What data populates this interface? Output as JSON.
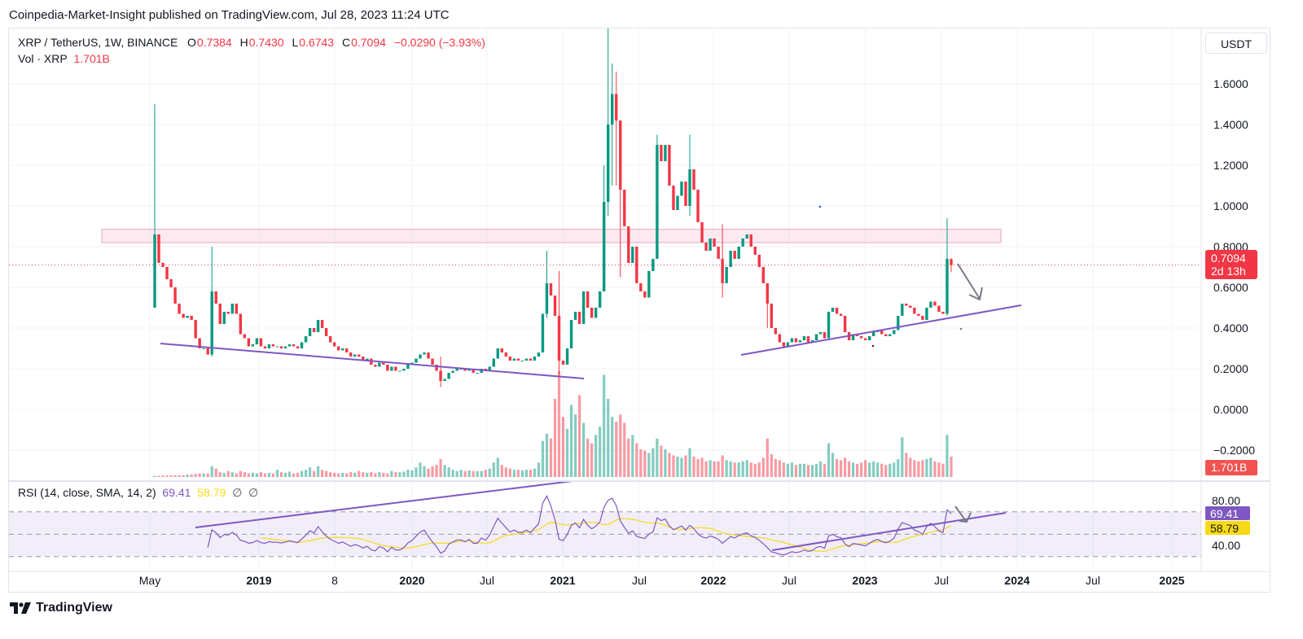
{
  "publisher_line": "Coinpedia-Market-Insight published on TradingView.com, Jul 28, 2023 11:24 UTC",
  "legend": {
    "symbol": "XRP / TetherUS, 1W, BINANCE",
    "open_label": "O",
    "open": "0.7384",
    "high_label": "H",
    "high": "0.7430",
    "low_label": "L",
    "low": "0.6743",
    "close_label": "C",
    "close": "0.7094",
    "change": "−0.0290 (−3.93%)",
    "vol_label": "Vol · XRP",
    "vol_value": "1.701B"
  },
  "rsi_legend": {
    "label": "RSI (14, close, SMA, 14, 2)",
    "rsi": "69.41",
    "sma": "58.79",
    "na1": "∅",
    "na2": "∅"
  },
  "currency_button": "USDT",
  "footer_logo": "TradingView",
  "colors": {
    "up": "#089981",
    "down": "#f23645",
    "rsi": "#7e57c2",
    "rsi_sma": "#f7d917",
    "trendline": "#7e57c2",
    "zone": "#f8bbd0",
    "arrow": "#787b86"
  },
  "chart_data": {
    "type": "candlestick",
    "price_axis": {
      "ticks": [
        "1.6000",
        "1.4000",
        "1.2000",
        "1.0000",
        "0.8000",
        "0.6000",
        "0.4000",
        "0.2000",
        "0.0000",
        "−0.2000"
      ],
      "range": [
        -0.3,
        1.88
      ]
    },
    "time_axis": {
      "ticks": [
        {
          "label": "May",
          "bold": false
        },
        {
          "label": "2019",
          "bold": true
        },
        {
          "label": "8",
          "bold": false
        },
        {
          "label": "2020",
          "bold": true
        },
        {
          "label": "Jul",
          "bold": false
        },
        {
          "label": "2021",
          "bold": true
        },
        {
          "label": "Jul",
          "bold": false
        },
        {
          "label": "2022",
          "bold": true
        },
        {
          "label": "Jul",
          "bold": false
        },
        {
          "label": "2023",
          "bold": true
        },
        {
          "label": "Jul",
          "bold": false
        },
        {
          "label": "2024",
          "bold": true
        },
        {
          "label": "Jul",
          "bold": false
        },
        {
          "label": "2025",
          "bold": true
        }
      ]
    },
    "first_open": 0.5,
    "closes": [
      0.86,
      0.72,
      0.7,
      0.64,
      0.6,
      0.52,
      0.47,
      0.45,
      0.46,
      0.44,
      0.35,
      0.3,
      0.3,
      0.27,
      0.58,
      0.52,
      0.42,
      0.48,
      0.47,
      0.52,
      0.47,
      0.37,
      0.35,
      0.31,
      0.32,
      0.35,
      0.31,
      0.3,
      0.32,
      0.31,
      0.31,
      0.3,
      0.31,
      0.32,
      0.31,
      0.3,
      0.33,
      0.36,
      0.4,
      0.38,
      0.44,
      0.4,
      0.36,
      0.33,
      0.31,
      0.29,
      0.3,
      0.28,
      0.26,
      0.27,
      0.26,
      0.24,
      0.25,
      0.22,
      0.21,
      0.23,
      0.22,
      0.19,
      0.21,
      0.19,
      0.19,
      0.2,
      0.22,
      0.23,
      0.25,
      0.27,
      0.28,
      0.25,
      0.22,
      0.19,
      0.14,
      0.15,
      0.18,
      0.19,
      0.2,
      0.2,
      0.19,
      0.2,
      0.18,
      0.18,
      0.2,
      0.19,
      0.21,
      0.25,
      0.3,
      0.28,
      0.26,
      0.24,
      0.25,
      0.24,
      0.24,
      0.25,
      0.24,
      0.26,
      0.28,
      0.47,
      0.62,
      0.56,
      0.46,
      0.24,
      0.22,
      0.3,
      0.44,
      0.48,
      0.42,
      0.58,
      0.5,
      0.45,
      0.5,
      0.58,
      1.02,
      1.4,
      1.55,
      1.42,
      1.08,
      0.9,
      0.72,
      0.8,
      0.62,
      0.58,
      0.55,
      0.68,
      0.74,
      1.3,
      1.22,
      1.3,
      1.1,
      0.98,
      1.05,
      1.12,
      1.0,
      1.18,
      1.08,
      0.92,
      0.82,
      0.78,
      0.84,
      0.8,
      0.74,
      0.62,
      0.7,
      0.78,
      0.74,
      0.8,
      0.84,
      0.86,
      0.8,
      0.76,
      0.7,
      0.62,
      0.52,
      0.4,
      0.37,
      0.33,
      0.31,
      0.33,
      0.35,
      0.33,
      0.34,
      0.36,
      0.33,
      0.34,
      0.37,
      0.38,
      0.35,
      0.48,
      0.5,
      0.47,
      0.46,
      0.38,
      0.34,
      0.37,
      0.36,
      0.35,
      0.34,
      0.36,
      0.38,
      0.39,
      0.37,
      0.36,
      0.37,
      0.39,
      0.46,
      0.52,
      0.51,
      0.5,
      0.47,
      0.46,
      0.44,
      0.5,
      0.53,
      0.51,
      0.48,
      0.47,
      0.74,
      0.7094
    ],
    "wicks": [
      [
        0,
        1.5,
        0.5
      ],
      [
        14,
        0.8,
        0.26
      ],
      [
        70,
        0.26,
        0.11
      ],
      [
        96,
        0.78,
        0.45
      ],
      [
        99,
        0.68,
        0.17
      ],
      [
        110,
        1.2,
        0.72
      ],
      [
        111,
        1.88,
        0.95
      ],
      [
        112,
        1.7,
        1.1
      ],
      [
        113,
        1.66,
        1.1
      ],
      [
        114,
        1.2,
        0.65
      ],
      [
        123,
        1.35,
        0.76
      ],
      [
        131,
        1.35,
        0.95
      ],
      [
        139,
        0.91,
        0.55
      ],
      [
        150,
        0.6,
        0.4
      ],
      [
        194,
        0.94,
        0.46
      ],
      [
        195,
        0.743,
        0.6743
      ]
    ],
    "volume_B": [
      0.1,
      0.1,
      0.12,
      0.12,
      0.13,
      0.14,
      0.15,
      0.15,
      0.2,
      0.2,
      0.25,
      0.3,
      0.3,
      0.3,
      0.9,
      0.7,
      0.4,
      0.35,
      0.5,
      0.4,
      0.3,
      0.5,
      0.4,
      0.3,
      0.35,
      0.3,
      0.4,
      0.3,
      0.35,
      0.3,
      0.6,
      0.4,
      0.35,
      0.45,
      0.3,
      0.35,
      0.5,
      0.6,
      0.8,
      0.5,
      0.9,
      0.6,
      0.5,
      0.4,
      0.35,
      0.3,
      0.35,
      0.3,
      0.4,
      0.35,
      0.5,
      0.4,
      0.35,
      0.4,
      0.3,
      0.4,
      0.35,
      0.3,
      0.5,
      0.4,
      0.4,
      0.45,
      0.6,
      0.55,
      0.8,
      1.2,
      0.9,
      0.7,
      0.9,
      1.0,
      1.5,
      1.0,
      0.8,
      0.6,
      0.5,
      0.6,
      0.5,
      0.55,
      0.5,
      0.5,
      0.5,
      0.6,
      0.7,
      1.2,
      1.6,
      1.0,
      0.8,
      0.7,
      0.6,
      0.6,
      0.55,
      0.6,
      0.6,
      0.7,
      1.2,
      3.0,
      3.6,
      3.2,
      6.5,
      8.8,
      5.0,
      4.0,
      6.0,
      5.2,
      6.8,
      4.5,
      3.2,
      2.8,
      3.5,
      4.2,
      8.5,
      6.5,
      5.0,
      4.6,
      5.2,
      4.5,
      3.2,
      3.5,
      2.8,
      2.3,
      2.2,
      2.0,
      2.4,
      3.2,
      2.6,
      2.3,
      2.0,
      1.8,
      1.7,
      1.6,
      1.8,
      2.4,
      1.7,
      1.5,
      1.6,
      1.3,
      1.4,
      1.3,
      1.3,
      1.8,
      1.4,
      1.3,
      1.2,
      1.2,
      1.3,
      1.4,
      1.2,
      1.1,
      1.2,
      1.6,
      3.2,
      1.9,
      1.5,
      1.4,
      1.2,
      1.1,
      1.2,
      1.0,
      1.1,
      1.1,
      1.0,
      1.0,
      1.1,
      1.3,
      1.1,
      2.8,
      2.0,
      1.5,
      1.4,
      1.6,
      1.3,
      1.2,
      1.1,
      1.2,
      1.4,
      1.2,
      1.3,
      1.2,
      1.1,
      1.0,
      1.1,
      1.2,
      1.5,
      3.3,
      2.0,
      1.6,
      1.4,
      1.3,
      1.4,
      1.5,
      1.6,
      1.3,
      1.2,
      1.1,
      3.5,
      1.701
    ],
    "last_price_tag": {
      "price": "0.7094",
      "countdown": "2d 13h"
    },
    "volume_tag": "1.701B",
    "rsi": {
      "period": 14,
      "sma_period": 14,
      "levels": [
        70,
        50,
        30
      ],
      "axis_ticks": [
        "80.00",
        "40.00"
      ],
      "last": "69.41",
      "sma_last": "58.79"
    },
    "resistance_zone": [
      0.82,
      0.885
    ]
  }
}
